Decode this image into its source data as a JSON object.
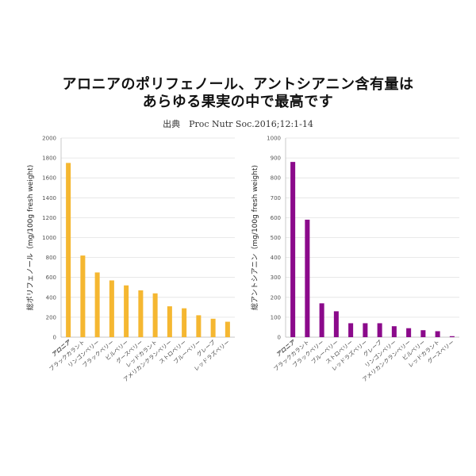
{
  "header": {
    "title_line1": "アロニアのポリフェノール、アントシアニン含有量は",
    "title_line2": "あらゆる果実の中で最高です",
    "source": "出典　Proc Nutr Soc.2016;12:1-14"
  },
  "chart_data": [
    {
      "type": "bar",
      "title": "",
      "xlabel": "",
      "ylabel": "総ポリフェノール（mg/100g fresh weight)",
      "ylim": [
        0,
        2000
      ],
      "yticks": [
        0,
        200,
        400,
        600,
        800,
        1000,
        1200,
        1400,
        1600,
        1800,
        2000
      ],
      "color": "#f5b731",
      "highlight_color": "#c0141c",
      "categories": [
        "アロニア",
        "ブラックカラント",
        "リンゴンベリー",
        "ブラックベリー",
        "ビルベリー",
        "グースベリー",
        "レッドカラント",
        "アメリカンクランベリー",
        "ストロベリー",
        "ブルーベリー",
        "グレープ",
        "レッドラズベリー"
      ],
      "values": [
        1750,
        820,
        650,
        570,
        520,
        470,
        440,
        310,
        290,
        220,
        185,
        155
      ]
    },
    {
      "type": "bar",
      "title": "",
      "xlabel": "",
      "ylabel": "総アントシアニン（mg/100g fresh weight)",
      "ylim": [
        0,
        1000
      ],
      "yticks": [
        0,
        100,
        200,
        300,
        400,
        500,
        600,
        700,
        800,
        900,
        1000
      ],
      "color": "#8b0a8b",
      "highlight_color": "#c0141c",
      "categories": [
        "アロニア",
        "ブラックカラント",
        "ブラックベリー",
        "ブルーベリー",
        "ストロベリー",
        "レッドラズベリー",
        "グレープ",
        "リンゴンベリー",
        "アメリカンクランベリー",
        "ビルベリー",
        "レッドカラント",
        "グースベリー"
      ],
      "values": [
        880,
        590,
        170,
        130,
        70,
        70,
        70,
        55,
        45,
        35,
        30,
        5
      ]
    }
  ]
}
